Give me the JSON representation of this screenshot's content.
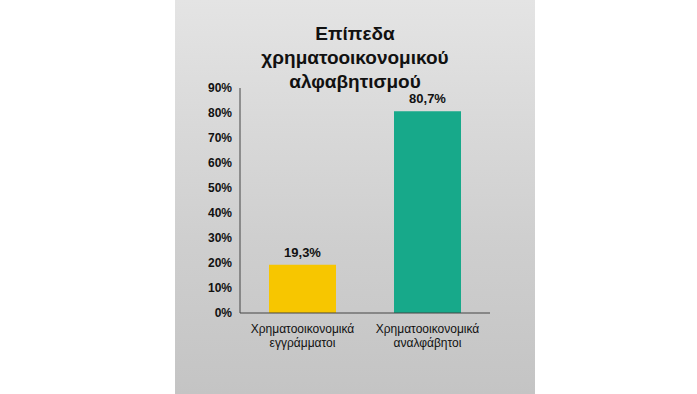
{
  "chart_data": {
    "type": "bar",
    "title": "Επίπεδα χρηματοοικονομικού αλφαβητισμού",
    "categories": [
      "Χρηματοοικονομικά εγγράμματοι",
      "Χρηματοοικονομικά αναλφάβητοι"
    ],
    "values": [
      19.3,
      80.7
    ],
    "value_labels": [
      "19,3%",
      "80,7%"
    ],
    "colors": [
      "#f7c600",
      "#17a98a"
    ],
    "ylim": [
      0,
      90
    ],
    "yticks": [
      {
        "value": 0,
        "label": "0%"
      },
      {
        "value": 10,
        "label": "10%"
      },
      {
        "value": 20,
        "label": "20%"
      },
      {
        "value": 30,
        "label": "30%"
      },
      {
        "value": 40,
        "label": "40%"
      },
      {
        "value": 50,
        "label": "50%"
      },
      {
        "value": 60,
        "label": "60%"
      },
      {
        "value": 70,
        "label": "70%"
      },
      {
        "value": 80,
        "label": "80%"
      },
      {
        "value": 90,
        "label": "90%"
      }
    ],
    "grid": false,
    "data_labels": true
  }
}
